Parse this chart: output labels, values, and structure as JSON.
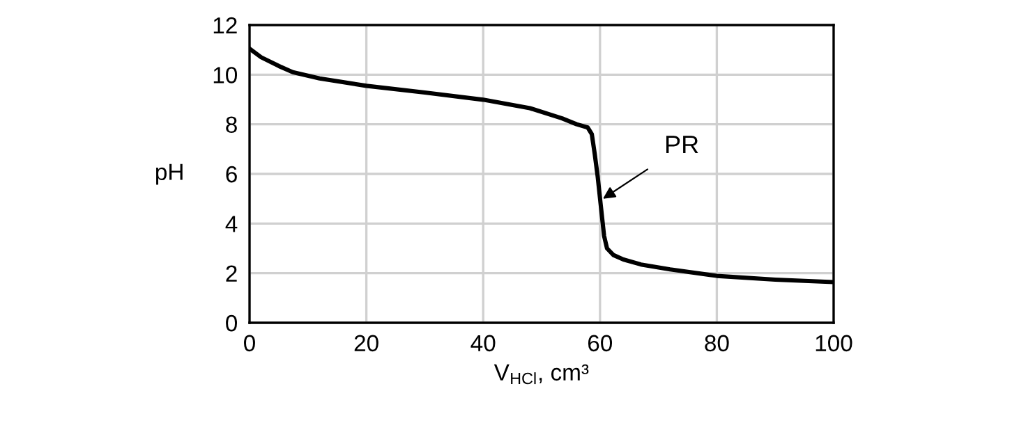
{
  "chart_data": {
    "type": "line",
    "xlabel": "V$_{HCl}$, cm³",
    "ylabel": "pH",
    "x": [
      0,
      2,
      5,
      7.4,
      12,
      20,
      30,
      40,
      48,
      53.5,
      56,
      57.9,
      58.6,
      59.1,
      59.6,
      60.1,
      60.7,
      61.2,
      62.3,
      64,
      67,
      72,
      80,
      90,
      100
    ],
    "series": [
      {
        "color": "#000000",
        "values": [
          11.05,
          10.7,
          10.35,
          10.1,
          9.85,
          9.55,
          9.28,
          8.99,
          8.65,
          8.24,
          8.0,
          7.87,
          7.6,
          6.8,
          5.9,
          4.8,
          3.5,
          3.0,
          2.73,
          2.55,
          2.35,
          2.15,
          1.89,
          1.74,
          1.64
        ]
      }
    ],
    "annotations": [
      {
        "text": "PR",
        "x": 60.5,
        "y": 5.0
      }
    ],
    "xlim": [
      0,
      100
    ],
    "ylim": [
      0,
      12
    ],
    "xticks": [
      0,
      20,
      40,
      60,
      80,
      100
    ],
    "yticks": [
      0,
      2,
      4,
      6,
      8,
      10,
      12
    ],
    "grid": true,
    "marker": "none",
    "line_style": "solid"
  }
}
